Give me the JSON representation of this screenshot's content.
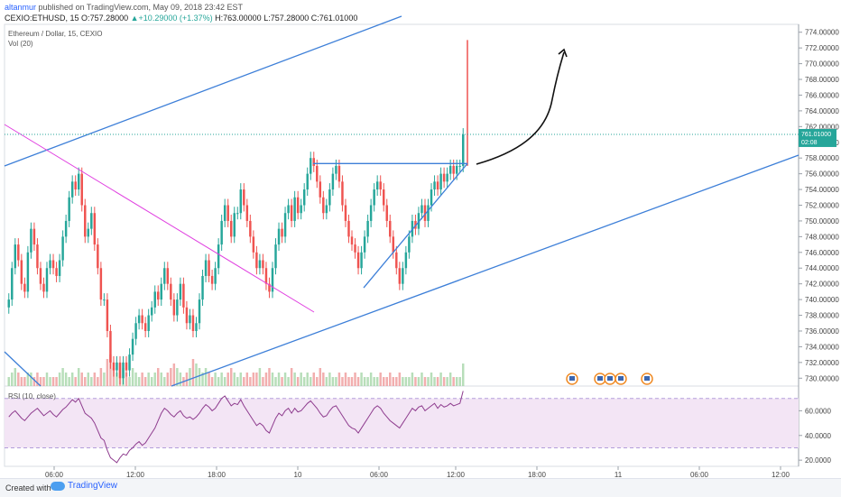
{
  "header": {
    "author": "altanmur",
    "published": "published on TradingView.com, May 09, 2018 23:42 EST",
    "symbol": "CEXIO:ETHUSD, 15",
    "open_label": "O:",
    "open_value": "757.28000",
    "change": "+10.29000 (+1.37%)",
    "high_label": "H:",
    "high_value": "763.00000",
    "low_label": "L:",
    "low_value": "757.28000",
    "close_label": "C:",
    "close_value": "761.01000"
  },
  "legend": {
    "title": "Ethereum / Dollar, 15, CEXIO",
    "volume": "Vol (20)",
    "rsi": "RSI (10, close)"
  },
  "footer": {
    "created_with": "Created with",
    "brand": "TradingView"
  },
  "price_tag": {
    "price": "761.01000",
    "countdown": "02:08"
  },
  "colors": {
    "up": "#26a69a",
    "down": "#ef5350",
    "trendline": "#3d7fd8",
    "magenta_line": "#e040e0",
    "rsi_line": "#8e3c8e",
    "rsi_band": "#f3e5f5",
    "price_tag": "#26a69a"
  },
  "chart_data": [
    {
      "type": "candlestick",
      "title": "Ethereum / Dollar, 15, CEXIO",
      "y_axis_ticks": [
        "730.00000",
        "732.00000",
        "734.00000",
        "736.00000",
        "738.00000",
        "740.00000",
        "742.00000",
        "744.00000",
        "746.00000",
        "748.00000",
        "750.00000",
        "752.00000",
        "754.00000",
        "756.00000",
        "758.00000",
        "760.00000",
        "762.00000",
        "764.00000",
        "766.00000",
        "768.00000",
        "770.00000",
        "772.00000",
        "774.00000"
      ],
      "x_axis_ticks": [
        "06:00",
        "12:00",
        "18:00",
        "10",
        "06:00",
        "12:00",
        "18:00",
        "11",
        "06:00",
        "12:00"
      ],
      "ylim": [
        729,
        775
      ],
      "last_price": 761.01,
      "close_series": [
        740,
        744,
        747,
        745,
        742,
        741,
        746,
        749,
        747,
        744,
        742,
        741,
        744,
        745,
        744,
        743,
        745,
        748,
        750,
        753,
        755,
        754,
        756,
        752,
        748,
        749,
        751,
        747,
        744,
        740,
        740,
        736,
        732,
        731,
        732,
        730,
        732,
        731,
        733,
        735,
        737,
        738,
        737,
        736,
        738,
        739,
        741,
        740,
        742,
        744,
        742,
        740,
        738,
        740,
        742,
        739,
        737,
        738,
        736,
        737,
        740,
        743,
        745,
        743,
        742,
        744,
        747,
        750,
        752,
        750,
        748,
        751,
        751,
        754,
        752,
        750,
        748,
        746,
        744,
        745,
        744,
        742,
        741,
        744,
        747,
        749,
        748,
        751,
        752,
        750,
        753,
        751,
        752,
        754,
        756,
        758,
        757,
        755,
        753,
        751,
        752,
        754,
        756,
        757,
        755,
        752,
        750,
        748,
        747,
        746,
        744,
        746,
        748,
        750,
        752,
        754,
        755,
        754,
        752,
        750,
        748,
        746,
        744,
        742,
        744,
        746,
        748,
        750,
        749,
        751,
        752,
        750,
        752,
        754,
        755,
        754,
        756,
        755,
        756,
        757,
        756,
        757,
        757,
        761
      ],
      "annotations": {
        "ascending_triangle_top": 757.3,
        "ascending_triangle_base_low": 741.5,
        "spike_high": 773
      }
    },
    {
      "type": "bar",
      "title": "Vol (20)",
      "values": [
        2,
        3,
        4,
        3,
        2,
        2,
        3,
        3,
        2,
        3,
        2,
        2,
        3,
        2,
        2,
        2,
        3,
        4,
        3,
        2,
        3,
        2,
        4,
        3,
        2,
        3,
        2,
        3,
        2,
        4,
        3,
        6,
        7,
        4,
        3,
        5,
        4,
        3,
        2,
        4,
        3,
        2,
        3,
        2,
        3,
        2,
        3,
        4,
        3,
        2,
        3,
        4,
        5,
        4,
        3,
        2,
        3,
        4,
        6,
        5,
        4,
        3,
        4,
        3,
        2,
        3,
        2,
        3,
        2,
        3,
        4,
        3,
        2,
        3,
        2,
        3,
        2,
        3,
        3,
        4,
        2,
        3,
        4,
        3,
        2,
        3,
        2,
        3,
        2,
        4,
        3,
        2,
        3,
        2,
        3,
        2,
        3,
        2,
        4,
        3,
        2,
        3,
        2,
        2,
        3,
        2,
        3,
        2,
        2,
        3,
        2,
        3,
        2,
        2,
        3,
        2,
        2,
        3,
        2,
        2,
        3,
        2,
        2,
        3,
        2,
        2,
        2,
        3,
        2,
        2,
        3,
        2,
        2,
        3,
        2,
        2,
        3,
        2,
        2,
        3,
        2,
        2,
        2,
        5
      ]
    },
    {
      "type": "line",
      "title": "RSI (10, close)",
      "y_axis_ticks": [
        "20.0000",
        "40.0000",
        "60.0000"
      ],
      "ylim": [
        15,
        80
      ],
      "band": [
        30,
        70
      ],
      "values": [
        55,
        58,
        60,
        57,
        54,
        52,
        55,
        58,
        60,
        62,
        59,
        56,
        58,
        60,
        57,
        55,
        58,
        61,
        63,
        66,
        69,
        67,
        70,
        64,
        58,
        56,
        54,
        50,
        44,
        38,
        36,
        28,
        22,
        20,
        18,
        22,
        25,
        24,
        28,
        30,
        33,
        35,
        32,
        34,
        38,
        42,
        46,
        52,
        58,
        62,
        60,
        57,
        55,
        58,
        60,
        56,
        54,
        55,
        53,
        55,
        58,
        62,
        65,
        63,
        60,
        62,
        66,
        70,
        72,
        68,
        64,
        66,
        65,
        69,
        64,
        60,
        56,
        52,
        48,
        50,
        48,
        44,
        42,
        48,
        54,
        58,
        56,
        60,
        62,
        58,
        62,
        59,
        60,
        63,
        66,
        68,
        65,
        62,
        58,
        55,
        56,
        60,
        63,
        64,
        60,
        56,
        52,
        48,
        46,
        45,
        42,
        46,
        50,
        54,
        58,
        62,
        64,
        62,
        58,
        55,
        52,
        50,
        48,
        46,
        50,
        54,
        58,
        62,
        60,
        63,
        64,
        60,
        62,
        64,
        66,
        62,
        65,
        63,
        64,
        66,
        64,
        65,
        66,
        76
      ]
    }
  ]
}
